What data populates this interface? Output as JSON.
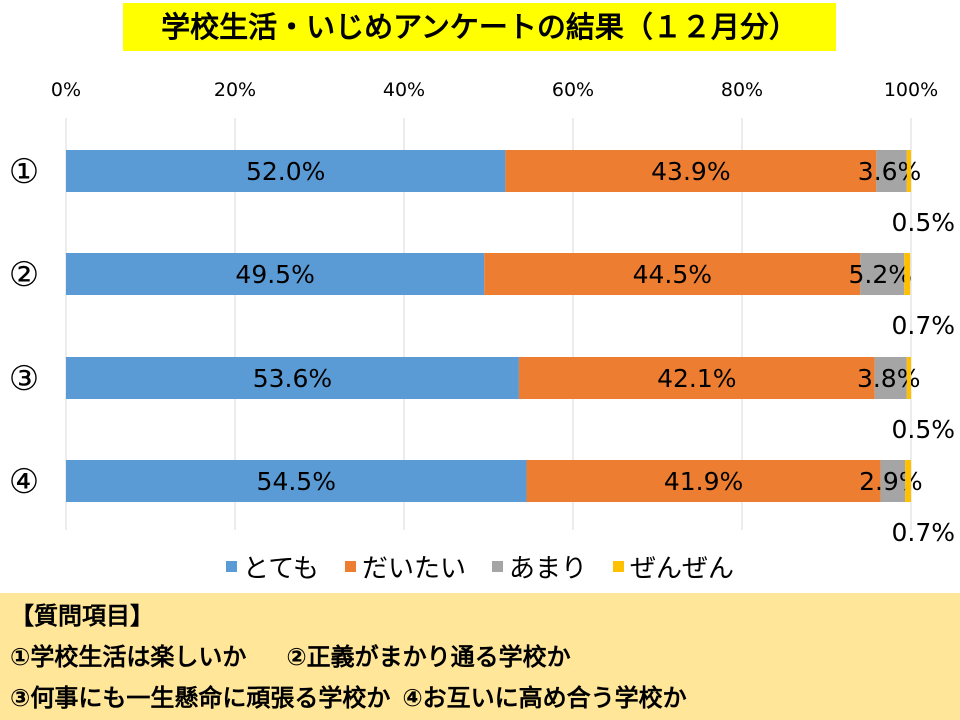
{
  "title": "学校生活・いじめアンケートの結果（１２月分）",
  "chart_data": {
    "type": "bar",
    "orientation": "horizontal",
    "stacked": "percent",
    "categories": [
      "①",
      "②",
      "③",
      "④"
    ],
    "series": [
      {
        "name": "とても",
        "color": "#5b9bd5",
        "values": [
          52.0,
          49.5,
          53.6,
          54.5
        ],
        "labels": [
          "52.0%",
          "49.5%",
          "53.6%",
          "54.5%"
        ]
      },
      {
        "name": "だいたい",
        "color": "#ed7d31",
        "values": [
          43.9,
          44.5,
          42.1,
          41.9
        ],
        "labels": [
          "43.9%",
          "44.5%",
          "42.1%",
          "41.9%"
        ]
      },
      {
        "name": "あまり",
        "color": "#a5a5a5",
        "values": [
          3.6,
          5.2,
          3.8,
          2.9
        ],
        "labels": [
          "3.6%",
          "5.2%",
          "3.8%",
          "2.9%"
        ]
      },
      {
        "name": "ぜんぜん",
        "color": "#ffc000",
        "values": [
          0.5,
          0.7,
          0.5,
          0.7
        ],
        "labels": [
          "0.5%",
          "0.7%",
          "0.5%",
          "0.7%"
        ]
      }
    ],
    "xlim": [
      0,
      100
    ],
    "xticks": [
      "0%",
      "20%",
      "40%",
      "60%",
      "80%",
      "100%"
    ],
    "xaxis_position": "top",
    "grid": true,
    "legend": "bottom"
  },
  "questions": {
    "heading": "【質問項目】",
    "q1": "①学校生活は楽しいか",
    "q2": "②正義がまかり通る学校か",
    "q3": "③何事にも一生懸命に頑張る学校か",
    "q4": "④お互いに高め合う学校か"
  }
}
